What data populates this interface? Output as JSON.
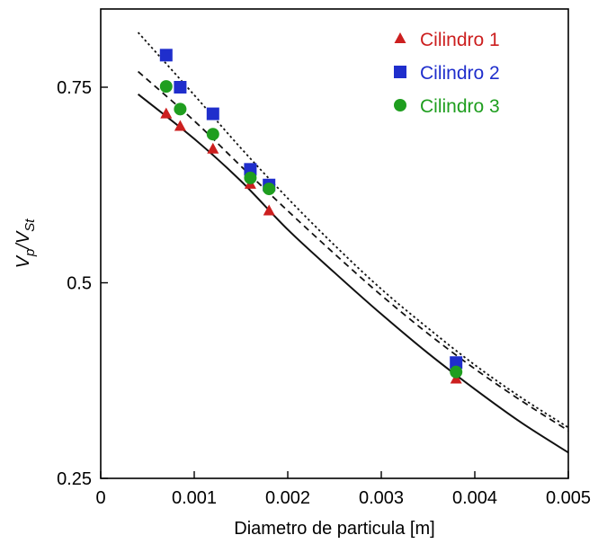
{
  "chart_data": {
    "type": "scatter",
    "title": "",
    "xlabel": "Diametro de particula [m]",
    "ylabel": {
      "main": "V",
      "sub1": "p",
      "slash": "/V",
      "sub2": "St"
    },
    "xlim": [
      0,
      0.005
    ],
    "ylim": [
      0.25,
      0.85
    ],
    "x_ticks": [
      0,
      0.001,
      0.002,
      0.003,
      0.004,
      0.005
    ],
    "x_tick_labels": [
      "0",
      "0.001",
      "0.002",
      "0.003",
      "0.004",
      "0.005"
    ],
    "y_ticks": [
      0.25,
      0.5,
      0.75
    ],
    "y_tick_labels": [
      "0.25",
      "0.5",
      "0.75"
    ],
    "grid": false,
    "legend_position": "top-right",
    "series": [
      {
        "name": "Cilindro 1",
        "marker": "triangle",
        "color": "#cc1f1f",
        "points": [
          {
            "x": 0.0007,
            "y": 0.716
          },
          {
            "x": 0.00085,
            "y": 0.7
          },
          {
            "x": 0.0012,
            "y": 0.671
          },
          {
            "x": 0.0016,
            "y": 0.626
          },
          {
            "x": 0.0018,
            "y": 0.592
          },
          {
            "x": 0.0038,
            "y": 0.377
          }
        ]
      },
      {
        "name": "Cilindro 2",
        "marker": "square",
        "color": "#1f2ecc",
        "points": [
          {
            "x": 0.0007,
            "y": 0.791
          },
          {
            "x": 0.00085,
            "y": 0.75
          },
          {
            "x": 0.0012,
            "y": 0.716
          },
          {
            "x": 0.0016,
            "y": 0.645
          },
          {
            "x": 0.0018,
            "y": 0.625
          },
          {
            "x": 0.0038,
            "y": 0.398
          }
        ]
      },
      {
        "name": "Cilindro 3",
        "marker": "circle",
        "color": "#1f9e1f",
        "points": [
          {
            "x": 0.0007,
            "y": 0.751
          },
          {
            "x": 0.00085,
            "y": 0.722
          },
          {
            "x": 0.0012,
            "y": 0.69
          },
          {
            "x": 0.0016,
            "y": 0.634
          },
          {
            "x": 0.0018,
            "y": 0.62
          },
          {
            "x": 0.0038,
            "y": 0.386
          }
        ]
      }
    ],
    "curves": [
      {
        "style": "solid",
        "points": [
          {
            "x": 0.0004,
            "y": 0.741
          },
          {
            "x": 0.001,
            "y": 0.684
          },
          {
            "x": 0.0015,
            "y": 0.63
          },
          {
            "x": 0.002,
            "y": 0.568
          },
          {
            "x": 0.0025,
            "y": 0.513
          },
          {
            "x": 0.003,
            "y": 0.46
          },
          {
            "x": 0.0035,
            "y": 0.41
          },
          {
            "x": 0.004,
            "y": 0.364
          },
          {
            "x": 0.0045,
            "y": 0.321
          },
          {
            "x": 0.005,
            "y": 0.283
          }
        ]
      },
      {
        "style": "dashed",
        "points": [
          {
            "x": 0.0004,
            "y": 0.77
          },
          {
            "x": 0.001,
            "y": 0.707
          },
          {
            "x": 0.0015,
            "y": 0.649
          },
          {
            "x": 0.002,
            "y": 0.592
          },
          {
            "x": 0.0025,
            "y": 0.537
          },
          {
            "x": 0.003,
            "y": 0.484
          },
          {
            "x": 0.0035,
            "y": 0.435
          },
          {
            "x": 0.004,
            "y": 0.39
          },
          {
            "x": 0.0045,
            "y": 0.349
          },
          {
            "x": 0.005,
            "y": 0.311
          }
        ]
      },
      {
        "style": "dotted",
        "points": [
          {
            "x": 0.0004,
            "y": 0.82
          },
          {
            "x": 0.001,
            "y": 0.74
          },
          {
            "x": 0.0015,
            "y": 0.672
          },
          {
            "x": 0.002,
            "y": 0.608
          },
          {
            "x": 0.0025,
            "y": 0.548
          },
          {
            "x": 0.003,
            "y": 0.492
          },
          {
            "x": 0.0035,
            "y": 0.442
          },
          {
            "x": 0.004,
            "y": 0.395
          },
          {
            "x": 0.0045,
            "y": 0.353
          },
          {
            "x": 0.005,
            "y": 0.315
          }
        ]
      }
    ]
  }
}
